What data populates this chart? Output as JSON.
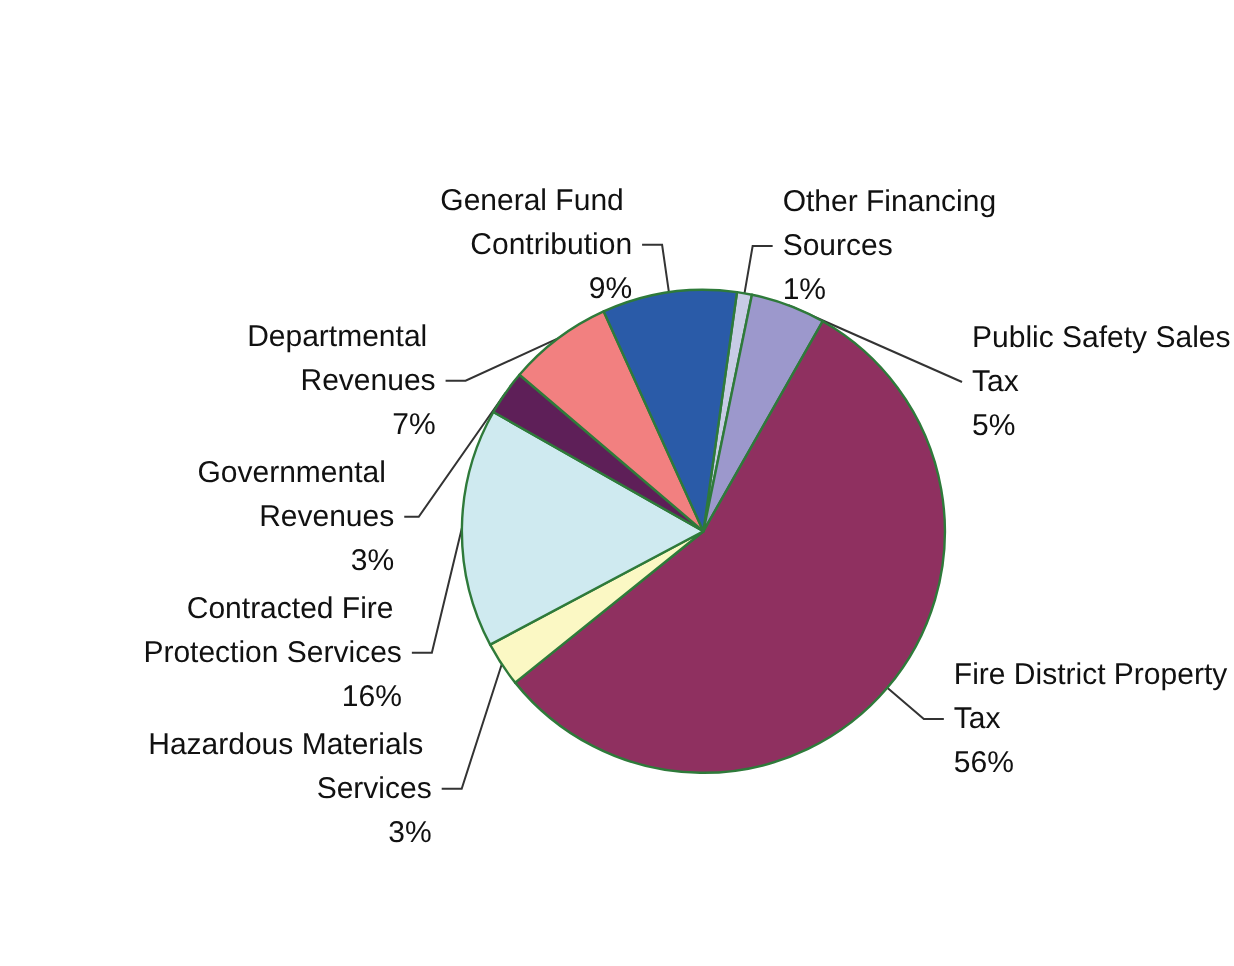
{
  "chart_data": {
    "type": "pie",
    "categories": [
      "Other Financing Sources",
      "Public Safety Sales Tax",
      "Fire District Property Tax",
      "Hazardous Materials Services",
      "Contracted Fire Protection Services",
      "Governmental Revenues",
      "Departmental Revenues",
      "General Fund Contribution"
    ],
    "values": [
      1,
      5,
      56,
      3,
      16,
      3,
      7,
      9
    ],
    "value_labels": [
      "1%",
      "5%",
      "56%",
      "3%",
      "16%",
      "3%",
      "7%",
      "9%"
    ],
    "colors": [
      "#c8cce6",
      "#9c98cc",
      "#8f3060",
      "#fbf8c4",
      "#cfeaf0",
      "#5e1f58",
      "#f28080",
      "#2a5ba8"
    ]
  }
}
